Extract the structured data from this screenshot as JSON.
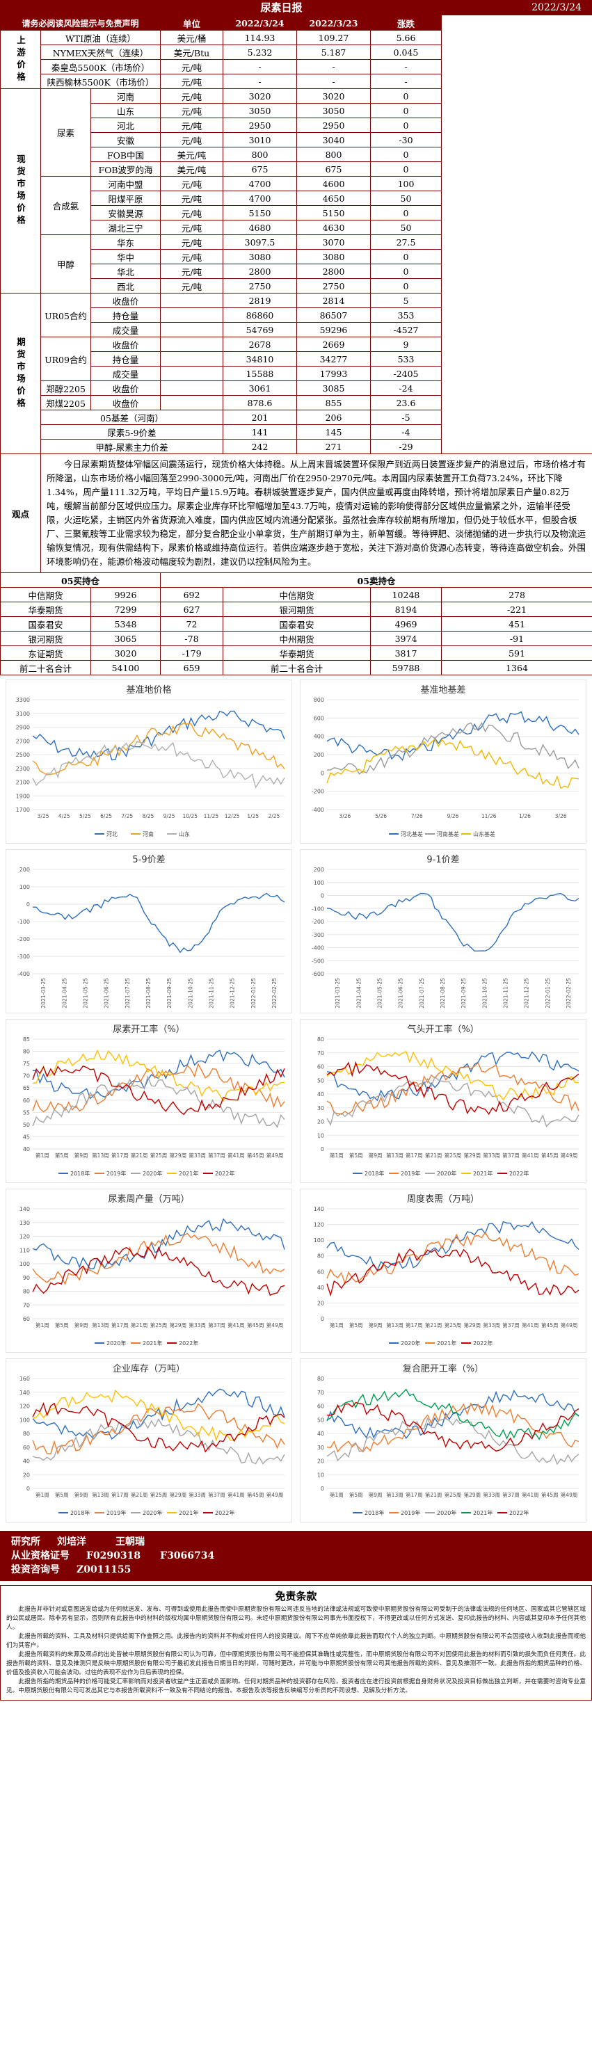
{
  "header": {
    "title": "尿素日报",
    "date": "2022/3/24"
  },
  "table_head": [
    "请务必阅读风险提示与免责声明",
    "单位",
    "2022/3/24",
    "2022/3/23",
    "涨跌"
  ],
  "upstream": {
    "label": "上游价格",
    "rows": [
      [
        "WTI原油（连续）",
        "美元/桶",
        "114.93",
        "109.27",
        "5.66"
      ],
      [
        "NYMEX天然气（连续）",
        "美元/Btu",
        "5.232",
        "5.187",
        "0.045"
      ],
      [
        "秦皇岛5500K（市场价）",
        "元/吨",
        "-",
        "-",
        "-"
      ],
      [
        "陕西榆林5500K（市场价）",
        "元/吨",
        "-",
        "-",
        "-"
      ]
    ]
  },
  "spot": {
    "label": "现货市场价格",
    "groups": [
      {
        "name": "尿素",
        "rows": [
          [
            "河南",
            "元/吨",
            "3020",
            "3020",
            "0"
          ],
          [
            "山东",
            "元/吨",
            "3050",
            "3050",
            "0"
          ],
          [
            "河北",
            "元/吨",
            "2950",
            "2950",
            "0"
          ],
          [
            "安徽",
            "元/吨",
            "3010",
            "3040",
            "-30"
          ],
          [
            "FOB中国",
            "美元/吨",
            "800",
            "800",
            "0"
          ],
          [
            "FOB波罗的海",
            "美元/吨",
            "675",
            "675",
            "0"
          ]
        ]
      },
      {
        "name": "合成氨",
        "rows": [
          [
            "河南中盟",
            "元/吨",
            "4700",
            "4600",
            "100"
          ],
          [
            "阳煤平原",
            "元/吨",
            "4700",
            "4650",
            "50"
          ],
          [
            "安徽昊源",
            "元/吨",
            "5150",
            "5150",
            "0"
          ],
          [
            "湖北三宁",
            "元/吨",
            "4680",
            "4630",
            "50"
          ]
        ]
      },
      {
        "name": "甲醇",
        "rows": [
          [
            "华东",
            "元/吨",
            "3097.5",
            "3070",
            "27.5"
          ],
          [
            "华中",
            "元/吨",
            "3080",
            "3080",
            "0"
          ],
          [
            "华北",
            "元/吨",
            "2800",
            "2800",
            "0"
          ],
          [
            "西北",
            "元/吨",
            "2750",
            "2750",
            "0"
          ]
        ]
      }
    ]
  },
  "futures": {
    "label": "期货市场价格",
    "groups": [
      {
        "name": "UR05合约",
        "rows": [
          [
            "收盘价",
            "2819",
            "2814",
            "5"
          ],
          [
            "持仓量",
            "86860",
            "86507",
            "353"
          ],
          [
            "成交量",
            "54769",
            "59296",
            "-4527"
          ]
        ]
      },
      {
        "name": "UR09合约",
        "rows": [
          [
            "收盘价",
            "2678",
            "2669",
            "9"
          ],
          [
            "持仓量",
            "34810",
            "34277",
            "533"
          ],
          [
            "成交量",
            "15588",
            "17993",
            "-2405"
          ]
        ]
      },
      {
        "name": "郑醇2205",
        "rows": [
          [
            "收盘价",
            "3061",
            "3085",
            "-24"
          ]
        ]
      },
      {
        "name": "郑煤2205",
        "rows": [
          [
            "收盘价",
            "878.6",
            "855",
            "23.6"
          ]
        ]
      }
    ],
    "extra": [
      [
        "05基差（河南）",
        "201",
        "206",
        "-5"
      ],
      [
        "尿素5-9价差",
        "141",
        "145",
        "-4"
      ],
      [
        "甲醇-尿素主力价差",
        "242",
        "271",
        "-29"
      ]
    ]
  },
  "viewpoint": {
    "label": "观点",
    "text": "今日尿素期货整体窄幅区间震荡运行，现货价格大体持稳。从上周末晋城装置环保限产到近两日装置逐步复产的消息过后，市场价格才有所降温，山东市场价格小幅回落至2990-3000元/吨，河南出厂价在2950-2970元/吨。本周国内尿素装置开工负荷73.24%，环比下降1.34%，周产量111.32万吨，平均日产量15.9万吨。春耕城装置逐步复产，国内供应量或再度由降转增，预计将增加尿素日产量0.82万吨，缓解当前部分区域供应压力。尿素企业库存环比窄幅增加至43.7万吨，疫情对运输的影响使得部分区域供应量偏紧之外，运输半径受限，火运吃紧，主销区内外省货源流入难度，国内供应区域内流通分配紧张。虽然社会库存较前期有所增加，但仍处于较低水平，但股合板厂、三聚氰胺等工业需求较为稳定，部分复合肥企业小单拿货，生产前期订单为主，新单暂缓。等待钾肥、淡储抛储的进一步执行以及物流运输恢复情况，现有供需结构下，尿素价格或维持高位运行。若供应端逐步趋于宽松，关注下游对高价货源心态转变，等待连高做空机会。外围环境影响仍在，能源价格波动幅度较为剧烈，建议仍以控制风险为主。"
  },
  "positions": {
    "buy_title": "05买持仓",
    "sell_title": "05卖持仓",
    "rows": [
      [
        "中信期货",
        "9926",
        "692",
        "中信期货",
        "10248",
        "278"
      ],
      [
        "华泰期货",
        "7299",
        "627",
        "银河期货",
        "8194",
        "-221"
      ],
      [
        "国泰君安",
        "5348",
        "72",
        "国泰君安",
        "4969",
        "451"
      ],
      [
        "银河期货",
        "3065",
        "-78",
        "中州期货",
        "3974",
        "-91"
      ],
      [
        "东证期货",
        "3020",
        "-179",
        "华泰期货",
        "3817",
        "591"
      ],
      [
        "前二十名合计",
        "54100",
        "659",
        "前二十名合计",
        "59788",
        "1364"
      ]
    ]
  },
  "charts": [
    {
      "title": "基准地价格",
      "yticks": [
        "3300",
        "3100",
        "2900",
        "2700",
        "2500",
        "2300",
        "2100",
        "1900",
        "1700"
      ],
      "xticks": [
        "3/25",
        "4/25",
        "5/25",
        "6/25",
        "7/25",
        "8/25",
        "9/25",
        "10/25",
        "11/25",
        "12/25",
        "1/25",
        "2/25"
      ],
      "legend": [
        "河北",
        "河南",
        "山东"
      ],
      "colors": [
        "#2e6fbf",
        "#f0a020",
        "#b0b0b0"
      ]
    },
    {
      "title": "基准地基差",
      "yticks": [
        "800",
        "600",
        "400",
        "200",
        "0",
        "-200",
        "-400"
      ],
      "xticks": [
        "3/26",
        "5/26",
        "7/26",
        "9/26",
        "11/26",
        "1/26",
        "3/26"
      ],
      "legend": [
        "河北基差",
        "河南基差",
        "山东基差"
      ],
      "colors": [
        "#2e6fbf",
        "#9a9a9a",
        "#f2b800"
      ]
    },
    {
      "title": "5-9价差",
      "yticks": [
        "200",
        "100",
        "0",
        "-100",
        "-200",
        "-300",
        "-400"
      ],
      "xticks": [
        "2021-03-25",
        "2021-04-25",
        "2021-05-25",
        "2021-06-25",
        "2021-07-25",
        "2021-08-25",
        "2021-09-25",
        "2021-10-25",
        "2021-11-25",
        "2021-12-25",
        "2022-01-25",
        "2022-02-25"
      ],
      "legend": [],
      "colors": [
        "#2e6fbf"
      ]
    },
    {
      "title": "9-1价差",
      "yticks": [
        "200",
        "100",
        "0",
        "-100",
        "-200",
        "-300",
        "-400",
        "-500",
        "-600"
      ],
      "xticks": [
        "2021-03-25",
        "2021-04-25",
        "2021-05-25",
        "2021-06-25",
        "2021-07-25",
        "2021-08-25",
        "2021-09-25",
        "2021-10-25",
        "2021-11-25",
        "2021-12-25",
        "2022-01-25",
        "2022-02-25"
      ],
      "legend": [],
      "colors": [
        "#2e6fbf"
      ]
    },
    {
      "title": "尿素开工率（%）",
      "yticks": [
        "85",
        "80",
        "75",
        "70",
        "65",
        "60",
        "55",
        "50",
        "45",
        "40"
      ],
      "xticks": [
        "第1周",
        "第5周",
        "第9周",
        "第13周",
        "第17周",
        "第21周",
        "第25周",
        "第29周",
        "第33周",
        "第37周",
        "第41周",
        "第45周",
        "第49周"
      ],
      "legend": [
        "2018年",
        "2019年",
        "2020年",
        "2021年",
        "2022年"
      ],
      "colors": [
        "#2e6fbf",
        "#ed7d31",
        "#a5a5a5",
        "#ffc000",
        "#c00000"
      ]
    },
    {
      "title": "气头开工率（%）",
      "yticks": [
        "80",
        "70",
        "60",
        "50",
        "40",
        "30",
        "20",
        "10",
        "0"
      ],
      "xticks": [
        "第1周",
        "第5周",
        "第9周",
        "第13周",
        "第17周",
        "第21周",
        "第25周",
        "第29周",
        "第33周",
        "第37周",
        "第41周",
        "第45周",
        "第49周"
      ],
      "legend": [
        "2018年",
        "2019年",
        "2020年",
        "2021年",
        "2022年"
      ],
      "colors": [
        "#2e6fbf",
        "#ed7d31",
        "#a5a5a5",
        "#ffc000",
        "#c00000"
      ]
    },
    {
      "title": "尿素周产量（万吨）",
      "yticks": [
        "140",
        "130",
        "120",
        "110",
        "100",
        "90",
        "80",
        "70",
        "60"
      ],
      "xticks": [
        "第1周",
        "第5周",
        "第9周",
        "第13周",
        "第17周",
        "第21周",
        "第25周",
        "第29周",
        "第33周",
        "第37周",
        "第41周",
        "第45周",
        "第49周"
      ],
      "legend": [
        "2020年",
        "2021年",
        "2022年"
      ],
      "colors": [
        "#2e6fbf",
        "#ed7d31",
        "#c00000"
      ]
    },
    {
      "title": "周度表需（万吨）",
      "yticks": [
        "140",
        "120",
        "100",
        "80",
        "60",
        "40",
        "20",
        "0"
      ],
      "xticks": [
        "第1周",
        "第5周",
        "第9周",
        "第13周",
        "第17周",
        "第21周",
        "第25周",
        "第29周",
        "第33周",
        "第37周",
        "第41周",
        "第45周",
        "第49周"
      ],
      "legend": [
        "2020年",
        "2021年",
        "2022年"
      ],
      "colors": [
        "#2e6fbf",
        "#ed7d31",
        "#c00000"
      ]
    },
    {
      "title": "企业库存（万吨）",
      "yticks": [
        "160",
        "140",
        "120",
        "100",
        "80",
        "60",
        "40",
        "20",
        "0"
      ],
      "xticks": [
        "第1周",
        "第5周",
        "第9周",
        "第13周",
        "第17周",
        "第21周",
        "第25周",
        "第29周",
        "第33周",
        "第37周",
        "第41周",
        "第45周",
        "第49周"
      ],
      "legend": [
        "2018年",
        "2019年",
        "2020年",
        "2021年",
        "2022年"
      ],
      "colors": [
        "#2e6fbf",
        "#ed7d31",
        "#a5a5a5",
        "#ffc000",
        "#c00000"
      ]
    },
    {
      "title": "复合肥开工率（%）",
      "yticks": [
        "80",
        "70",
        "60",
        "50",
        "40",
        "30",
        "20",
        "10",
        "0"
      ],
      "xticks": [
        "第1周",
        "第5周",
        "第9周",
        "第13周",
        "第17周",
        "第21周",
        "第25周",
        "第29周",
        "第33周",
        "第37周",
        "第41周",
        "第45周",
        "第49周"
      ],
      "legend": [
        "2018年",
        "2019年",
        "2020年",
        "2021年",
        "2022年"
      ],
      "colors": [
        "#2e6fbf",
        "#ed7d31",
        "#a5a5a5",
        "#00a050",
        "#c00000"
      ]
    }
  ],
  "footer": {
    "researchers_label": "研究所",
    "researchers": "刘培洋　　　王朝瑞",
    "cert_label": "从业资格证号",
    "certs": "F0290318　　F3066734",
    "consult_label": "投资咨询号",
    "consult": "Z0011155",
    "disclaimer_title": "免责条款",
    "disclaimer": [
      "此报告并非针对或意图送发给或为任何就送发、发布、可得到或使用此报告而使中原期货股份有限公司违反当地的法律或法规或可致使中原期货股份有限公司受制于的法律或法规的任何地区、国家或其它管辖区域的公民或居民。除非另有显示，否则所有此报告中的材料的版权均属中原期货股份有限公司。未经中原期货股份有限公司事先书面授权下，不得更改或以任何方式发送、复印此报告的材料、内容或其复印本予任何其他人。",
      "此报告所载的资料、工具及材料只提供给阁下作查照之用。此报告内的资料并不构成对任何人的投资建议。阁下不应单纯依靠此报告而取代个人的独立判断。中原期货股份有限公司不会因接收人收到此报告而视他们为其客户。",
      "此报告所载资料的来源及观点的出处皆被中原期货股份有限公司认为可靠，但中原期货股份有限公司不能担保其准确性或完整性，而中原期货股份有限公司不对因使用此报告的材料而引致的损失而负任何责任。此报告所载的资料、意见及推测只是反映中原期货股份有限公司于最初发此报告日期当日的判断，可随时更改，并可能与中原期货股份有限公司其他报告所载的资料、意见及推测不一致。此报告所指的期货品种的价格、价值及投资收入可能会波动。过往的表现不应作为日后表现的担保。",
      "此报告所指的期货品种的价格可能受汇率影响而对投资者收益产生正面或负面影响。任何对期货品种的投资都存在风险，投资者应在进行投资前根据自身财务状况及投资目标做出独立判断，并在需要时咨询专业意见。中原期货股份有限公司可发出其它与本报告所载资料不一致及有不同结论的报告。本报告及该等报告反映编写分析员的不同设想、见解及分析方法。"
    ]
  }
}
